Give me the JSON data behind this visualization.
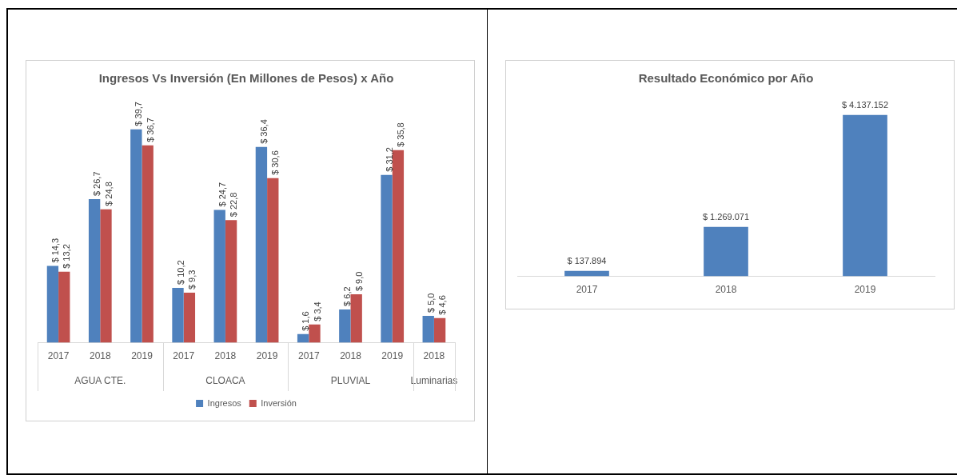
{
  "chart_data": [
    {
      "type": "bar",
      "title": "Ingresos Vs Inversión (En Millones de Pesos) x Año",
      "categories": [
        "2017",
        "2018",
        "2019",
        "2017",
        "2018",
        "2019",
        "2017",
        "2018",
        "2019",
        "2018"
      ],
      "legend": "bottom",
      "annotations": [
        "AGUA CTE.",
        "CLOACA",
        "PLUVIAL",
        "Luminarias"
      ],
      "series": [
        {
          "name": "Ingresos",
          "color": "#4f81bd",
          "values": [
            14.3,
            26.7,
            39.7,
            10.2,
            24.7,
            36.4,
            1.6,
            6.2,
            31.2,
            5.0
          ],
          "value_labels": [
            "$ 14,3",
            "$ 26,7",
            "$ 39,7",
            "$ 10,2",
            "$ 24,7",
            "$ 36,4",
            "$ 1,6",
            "$ 6,2",
            "$ 31,2",
            "$ 5,0"
          ]
        },
        {
          "name": "Inversión",
          "color": "#c0504d",
          "values": [
            13.2,
            24.8,
            36.7,
            9.3,
            22.8,
            30.6,
            3.4,
            9.0,
            35.8,
            4.6
          ],
          "value_labels": [
            "$ 13,2",
            "$ 24,8",
            "$ 36,7",
            "$ 9,3",
            "$ 22,8",
            "$ 30,6",
            "$ 3,4",
            "$ 9,0",
            "$ 35,8",
            "$ 4,6"
          ]
        }
      ]
    },
    {
      "type": "bar",
      "title": "Resultado Económico por Año",
      "categories": [
        "2017",
        "2018",
        "2019"
      ],
      "series": [
        {
          "color": "#4f81bd",
          "values": [
            137894,
            1269071,
            4137152
          ],
          "value_labels": [
            "$ 137.894",
            "$ 1.269.071",
            "$ 4.137.152"
          ]
        }
      ]
    }
  ]
}
